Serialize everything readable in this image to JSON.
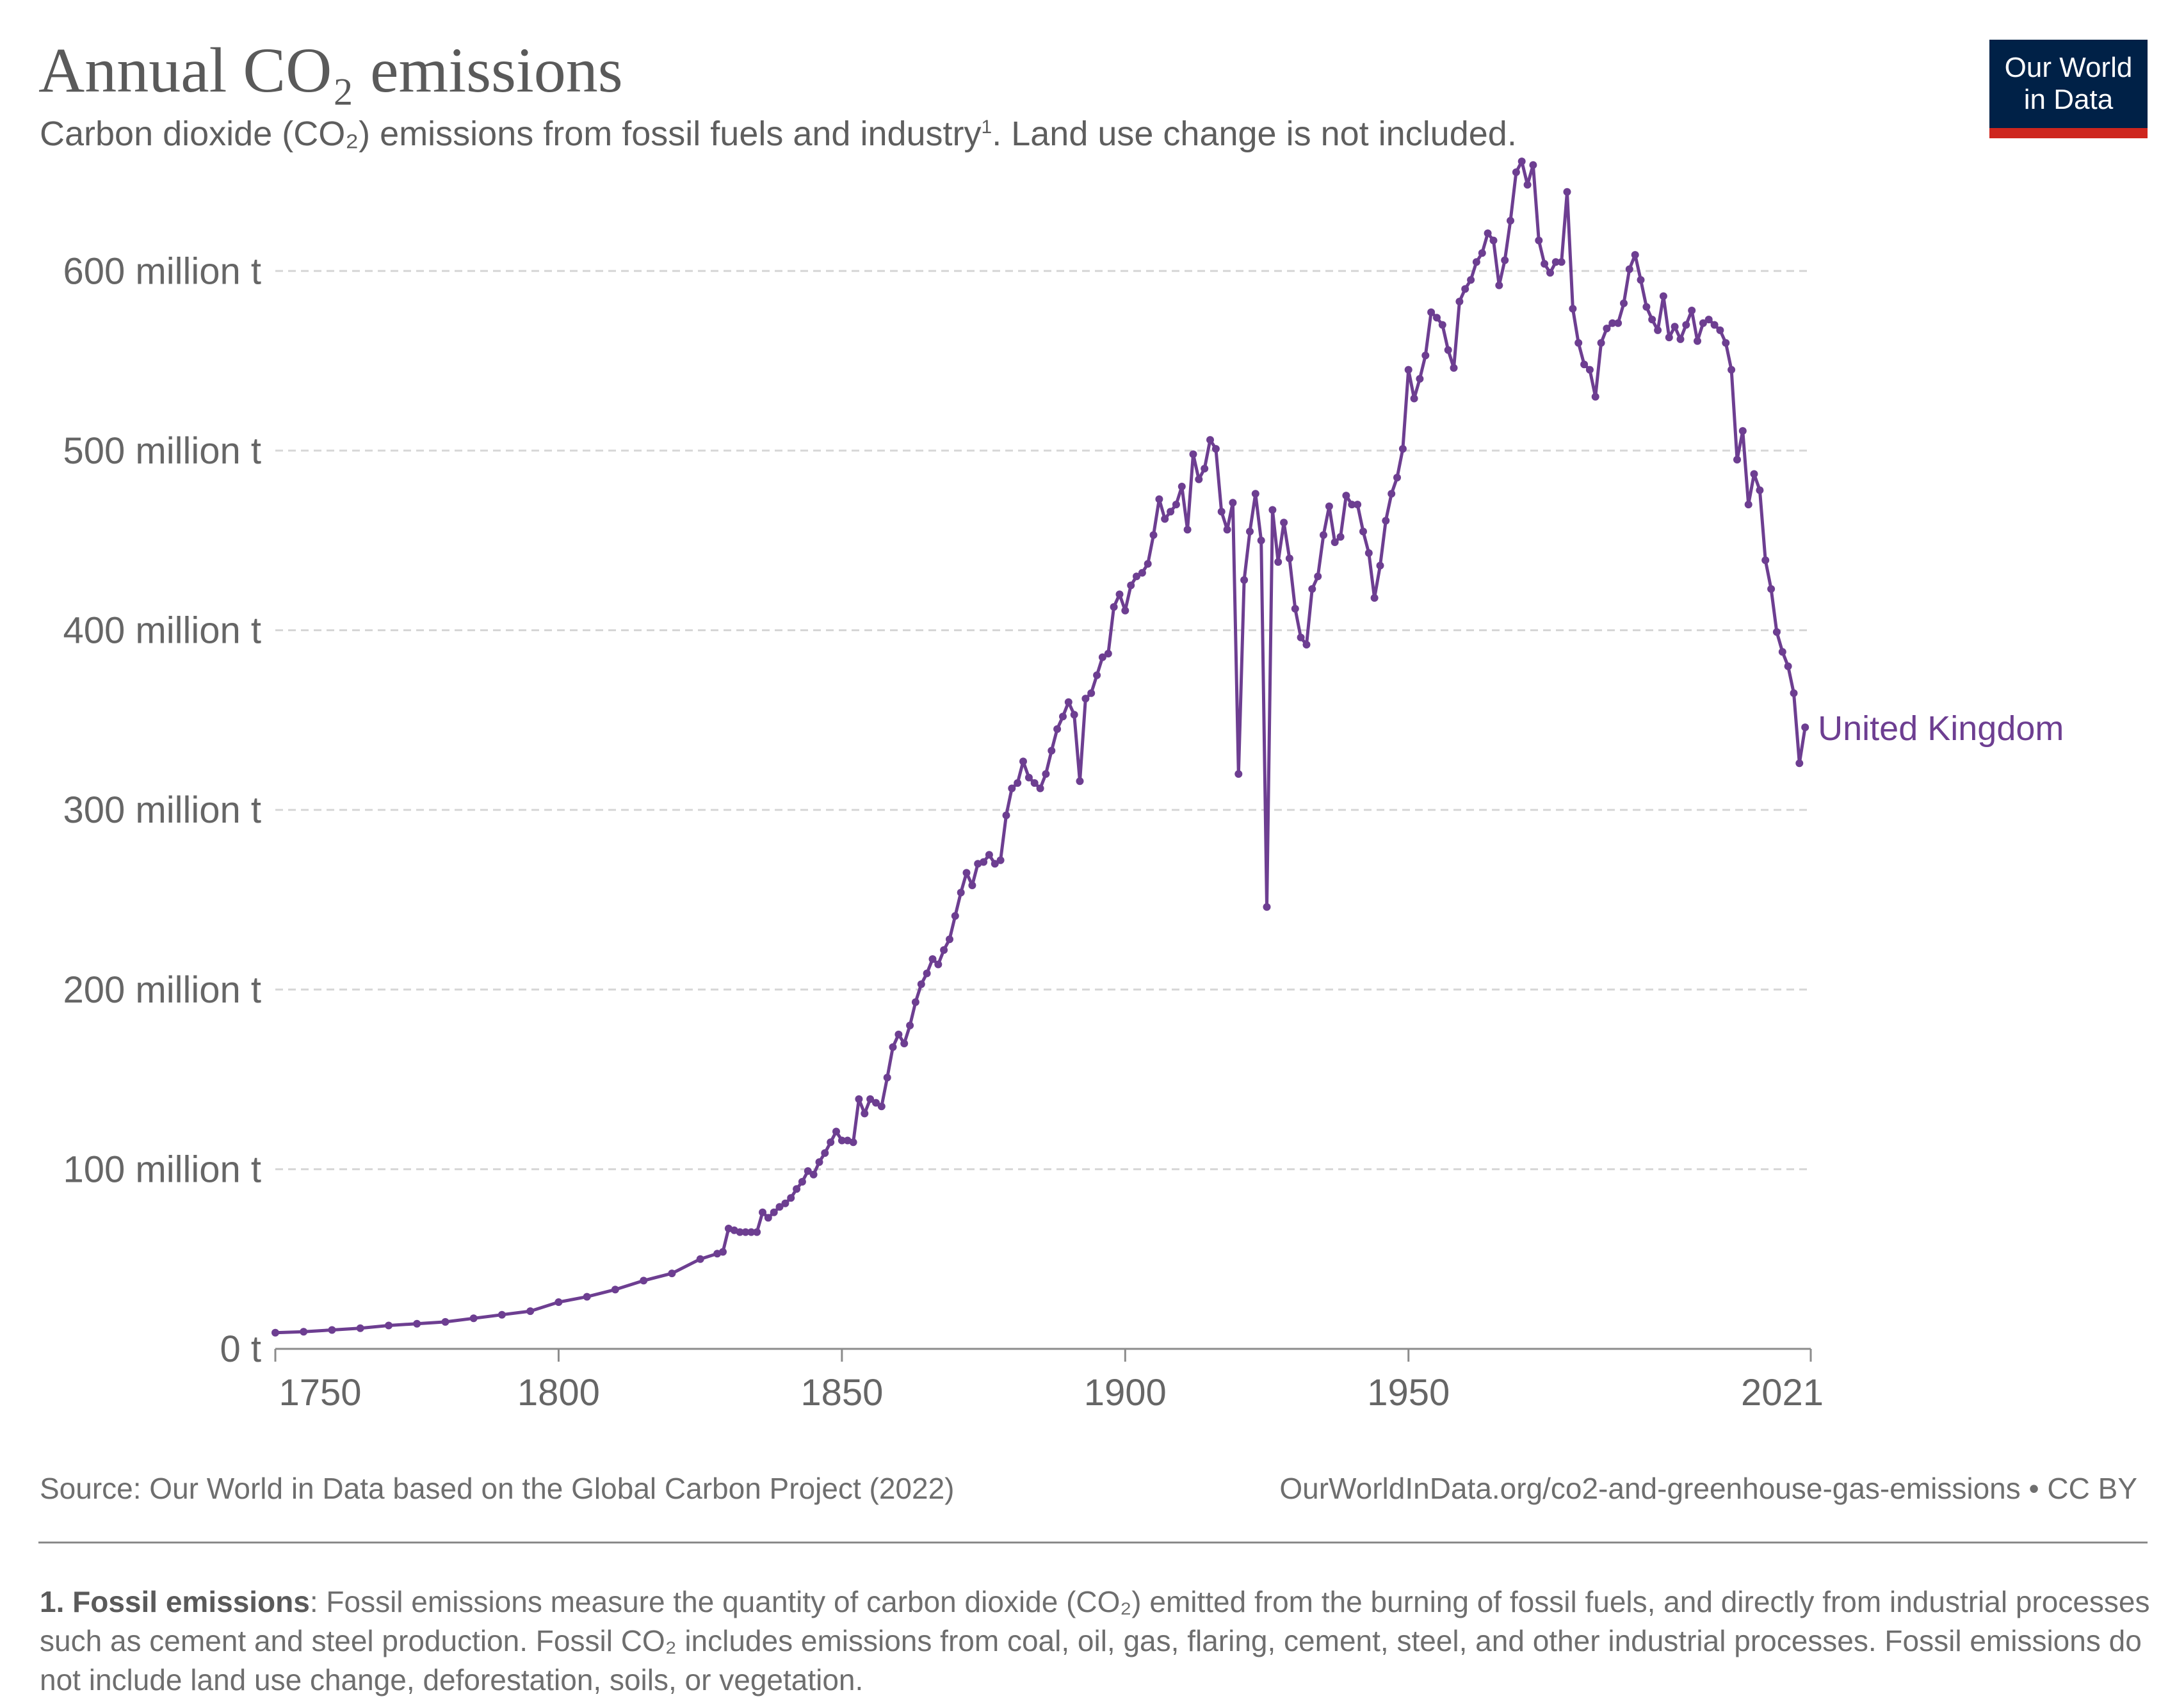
{
  "header": {
    "title": "Annual CO₂ emissions",
    "subtitle": "Carbon dioxide (CO₂) emissions from fossil fuels and industry",
    "subtitle_sup": "1",
    "subtitle_tail": ". Land use change is not included."
  },
  "logo": {
    "line1": "Our World",
    "line2": "in Data",
    "bg": "#002147",
    "accent": "#ce261e"
  },
  "footer": {
    "source": "Source: Our World in Data based on the Global Carbon Project (2022)",
    "url": "OurWorldInData.org/co2-and-greenhouse-gas-emissions • CC BY",
    "note_title": "1. Fossil emissions",
    "note_text": ": Fossil emissions measure the quantity of carbon dioxide (CO₂) emitted from the burning of fossil fuels, and directly from industrial processes such as cement and steel production. Fossil CO₂ includes emissions from coal, oil, gas, flaring, cement, steel, and other industrial processes. Fossil emissions do not include land use change, deforestation, soils, or vegetation."
  },
  "chart_data": {
    "type": "line",
    "title": "Annual CO₂ emissions",
    "xlim": [
      1750,
      2021
    ],
    "ylim": [
      0,
      650
    ],
    "x_ticks": [
      1750,
      1800,
      1850,
      1900,
      1950,
      2021
    ],
    "y_ticks": [
      {
        "value": 0,
        "label": "0 t"
      },
      {
        "value": 100,
        "label": "100 million t"
      },
      {
        "value": 200,
        "label": "200 million t"
      },
      {
        "value": 300,
        "label": "300 million t"
      },
      {
        "value": 400,
        "label": "400 million t"
      },
      {
        "value": 500,
        "label": "500 million t"
      },
      {
        "value": 600,
        "label": "600 million t"
      }
    ],
    "grid": "horizontal dashed",
    "color": "#6d3e91",
    "series": [
      {
        "name": "United Kingdom",
        "unit": "million t",
        "points": [
          [
            1750,
            9
          ],
          [
            1755,
            9.5
          ],
          [
            1760,
            10.5
          ],
          [
            1765,
            11.5
          ],
          [
            1770,
            13
          ],
          [
            1775,
            14
          ],
          [
            1780,
            15
          ],
          [
            1785,
            17
          ],
          [
            1790,
            19
          ],
          [
            1795,
            21
          ],
          [
            1800,
            26
          ],
          [
            1805,
            29
          ],
          [
            1810,
            33
          ],
          [
            1815,
            38
          ],
          [
            1820,
            42
          ],
          [
            1825,
            50
          ],
          [
            1828,
            53
          ],
          [
            1829,
            54
          ],
          [
            1830,
            67
          ],
          [
            1831,
            66
          ],
          [
            1832,
            65
          ],
          [
            1833,
            65
          ],
          [
            1834,
            65
          ],
          [
            1835,
            65
          ],
          [
            1836,
            76
          ],
          [
            1837,
            73
          ],
          [
            1838,
            76
          ],
          [
            1839,
            79
          ],
          [
            1840,
            81
          ],
          [
            1841,
            84
          ],
          [
            1842,
            89
          ],
          [
            1843,
            93
          ],
          [
            1844,
            99
          ],
          [
            1845,
            97
          ],
          [
            1846,
            104
          ],
          [
            1847,
            109
          ],
          [
            1848,
            115
          ],
          [
            1849,
            121
          ],
          [
            1850,
            116
          ],
          [
            1851,
            116
          ],
          [
            1852,
            115
          ],
          [
            1853,
            139
          ],
          [
            1854,
            131
          ],
          [
            1855,
            139
          ],
          [
            1856,
            137
          ],
          [
            1857,
            135
          ],
          [
            1858,
            151
          ],
          [
            1859,
            168
          ],
          [
            1860,
            175
          ],
          [
            1861,
            170
          ],
          [
            1862,
            180
          ],
          [
            1863,
            193
          ],
          [
            1864,
            203
          ],
          [
            1865,
            209
          ],
          [
            1866,
            217
          ],
          [
            1867,
            214
          ],
          [
            1868,
            222
          ],
          [
            1869,
            228
          ],
          [
            1870,
            241
          ],
          [
            1871,
            254
          ],
          [
            1872,
            265
          ],
          [
            1873,
            258
          ],
          [
            1874,
            270
          ],
          [
            1875,
            271
          ],
          [
            1876,
            275
          ],
          [
            1877,
            270
          ],
          [
            1878,
            272
          ],
          [
            1879,
            297
          ],
          [
            1880,
            312
          ],
          [
            1881,
            315
          ],
          [
            1882,
            327
          ],
          [
            1883,
            318
          ],
          [
            1884,
            315
          ],
          [
            1885,
            312
          ],
          [
            1886,
            320
          ],
          [
            1887,
            333
          ],
          [
            1888,
            345
          ],
          [
            1889,
            352
          ],
          [
            1890,
            360
          ],
          [
            1891,
            353
          ],
          [
            1892,
            316
          ],
          [
            1893,
            362
          ],
          [
            1894,
            365
          ],
          [
            1895,
            375
          ],
          [
            1896,
            385
          ],
          [
            1897,
            387
          ],
          [
            1898,
            413
          ],
          [
            1899,
            420
          ],
          [
            1900,
            411
          ],
          [
            1901,
            425
          ],
          [
            1902,
            430
          ],
          [
            1903,
            432
          ],
          [
            1904,
            437
          ],
          [
            1905,
            453
          ],
          [
            1906,
            473
          ],
          [
            1907,
            462
          ],
          [
            1908,
            466
          ],
          [
            1909,
            470
          ],
          [
            1910,
            480
          ],
          [
            1911,
            456
          ],
          [
            1912,
            498
          ],
          [
            1913,
            484
          ],
          [
            1914,
            490
          ],
          [
            1915,
            506
          ],
          [
            1916,
            501
          ],
          [
            1917,
            466
          ],
          [
            1918,
            456
          ],
          [
            1919,
            471
          ],
          [
            1920,
            320
          ],
          [
            1921,
            428
          ],
          [
            1922,
            455
          ],
          [
            1923,
            476
          ],
          [
            1924,
            450
          ],
          [
            1925,
            246
          ],
          [
            1926,
            467
          ],
          [
            1927,
            438
          ],
          [
            1928,
            460
          ],
          [
            1929,
            440
          ],
          [
            1930,
            412
          ],
          [
            1931,
            396
          ],
          [
            1932,
            392
          ],
          [
            1933,
            423
          ],
          [
            1934,
            430
          ],
          [
            1935,
            453
          ],
          [
            1936,
            469
          ],
          [
            1937,
            449
          ],
          [
            1938,
            452
          ],
          [
            1939,
            475
          ],
          [
            1940,
            470
          ],
          [
            1941,
            470
          ],
          [
            1942,
            455
          ],
          [
            1943,
            443
          ],
          [
            1944,
            418
          ],
          [
            1945,
            436
          ],
          [
            1946,
            461
          ],
          [
            1947,
            476
          ],
          [
            1948,
            485
          ],
          [
            1949,
            501
          ],
          [
            1950,
            545
          ],
          [
            1951,
            529
          ],
          [
            1952,
            540
          ],
          [
            1953,
            553
          ],
          [
            1954,
            577
          ],
          [
            1955,
            574
          ],
          [
            1956,
            570
          ],
          [
            1957,
            556
          ],
          [
            1958,
            546
          ],
          [
            1959,
            583
          ],
          [
            1960,
            590
          ],
          [
            1961,
            595
          ],
          [
            1962,
            605
          ],
          [
            1963,
            610
          ],
          [
            1964,
            621
          ],
          [
            1965,
            617
          ],
          [
            1966,
            592
          ],
          [
            1967,
            606
          ],
          [
            1968,
            628
          ],
          [
            1969,
            655
          ],
          [
            1970,
            661
          ],
          [
            1971,
            648
          ],
          [
            1972,
            659
          ],
          [
            1973,
            617
          ],
          [
            1974,
            604
          ],
          [
            1975,
            599
          ],
          [
            1976,
            605
          ],
          [
            1977,
            605
          ],
          [
            1978,
            644
          ],
          [
            1979,
            579
          ],
          [
            1980,
            560
          ],
          [
            1981,
            548
          ],
          [
            1982,
            545
          ],
          [
            1983,
            530
          ],
          [
            1984,
            560
          ],
          [
            1985,
            568
          ],
          [
            1986,
            571
          ],
          [
            1987,
            571
          ],
          [
            1988,
            582
          ],
          [
            1989,
            601
          ],
          [
            1990,
            609
          ],
          [
            1991,
            595
          ],
          [
            1992,
            580
          ],
          [
            1993,
            573
          ],
          [
            1994,
            567
          ],
          [
            1995,
            586
          ],
          [
            1996,
            563
          ],
          [
            1997,
            569
          ],
          [
            1998,
            562
          ],
          [
            1999,
            570
          ],
          [
            2000,
            578
          ],
          [
            2001,
            561
          ],
          [
            2002,
            571
          ],
          [
            2003,
            573
          ],
          [
            2004,
            570
          ],
          [
            2005,
            567
          ],
          [
            2006,
            560
          ],
          [
            2007,
            545
          ],
          [
            2008,
            495
          ],
          [
            2009,
            511
          ],
          [
            2010,
            470
          ],
          [
            2011,
            487
          ],
          [
            2012,
            478
          ],
          [
            2013,
            439
          ],
          [
            2014,
            423
          ],
          [
            2015,
            399
          ],
          [
            2016,
            388
          ],
          [
            2017,
            380
          ],
          [
            2018,
            365
          ],
          [
            2019,
            326
          ],
          [
            2020,
            346
          ]
        ]
      }
    ]
  }
}
